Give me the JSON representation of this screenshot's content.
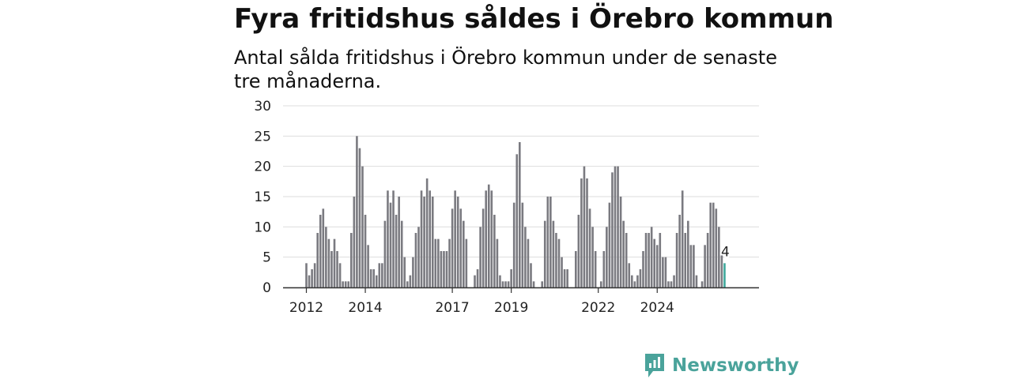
{
  "title": "Fyra fritidshus såldes i Örebro kommun",
  "subtitle": "Antal sålda fritidshus i Örebro kommun under de senaste tre månaderna.",
  "brand": {
    "name": "Newsworthy",
    "color": "#4aa39b"
  },
  "chart_data": {
    "type": "bar",
    "y_ticks": [
      "0",
      "5",
      "10",
      "15",
      "20",
      "25",
      "30"
    ],
    "ylim": [
      0,
      30
    ],
    "x_tick_labels": [
      {
        "label": "2012",
        "index": 0
      },
      {
        "label": "2014",
        "index": 21
      },
      {
        "label": "2017",
        "index": 52
      },
      {
        "label": "2019",
        "index": 73
      },
      {
        "label": "2022",
        "index": 104
      },
      {
        "label": "2024",
        "index": 125
      }
    ],
    "values": [
      4,
      2,
      3,
      4,
      9,
      12,
      13,
      10,
      8,
      6,
      8,
      6,
      4,
      1,
      1,
      1,
      9,
      15,
      25,
      23,
      20,
      12,
      7,
      3,
      3,
      2,
      4,
      4,
      11,
      16,
      14,
      16,
      12,
      15,
      11,
      5,
      1,
      2,
      5,
      9,
      10,
      16,
      15,
      18,
      16,
      15,
      8,
      8,
      6,
      6,
      6,
      8,
      13,
      16,
      15,
      13,
      11,
      8,
      0,
      0,
      2,
      3,
      10,
      13,
      16,
      17,
      16,
      12,
      8,
      2,
      1,
      1,
      1,
      3,
      14,
      22,
      24,
      14,
      10,
      8,
      4,
      1,
      0,
      0,
      1,
      11,
      15,
      15,
      11,
      9,
      8,
      5,
      3,
      3,
      0,
      0,
      6,
      12,
      18,
      20,
      18,
      13,
      10,
      6,
      0,
      1,
      6,
      10,
      14,
      19,
      20,
      20,
      15,
      11,
      9,
      4,
      2,
      1,
      2,
      3,
      6,
      9,
      9,
      10,
      8,
      7,
      9,
      5,
      5,
      1,
      1,
      2,
      9,
      12,
      16,
      9,
      11,
      7,
      7,
      2,
      0,
      1,
      7,
      9,
      14,
      14,
      13,
      10,
      6,
      4
    ],
    "highlight_value_label": "4",
    "bar_color": "#7a7a80",
    "highlight_color": "#3fa89b",
    "grid": true
  }
}
